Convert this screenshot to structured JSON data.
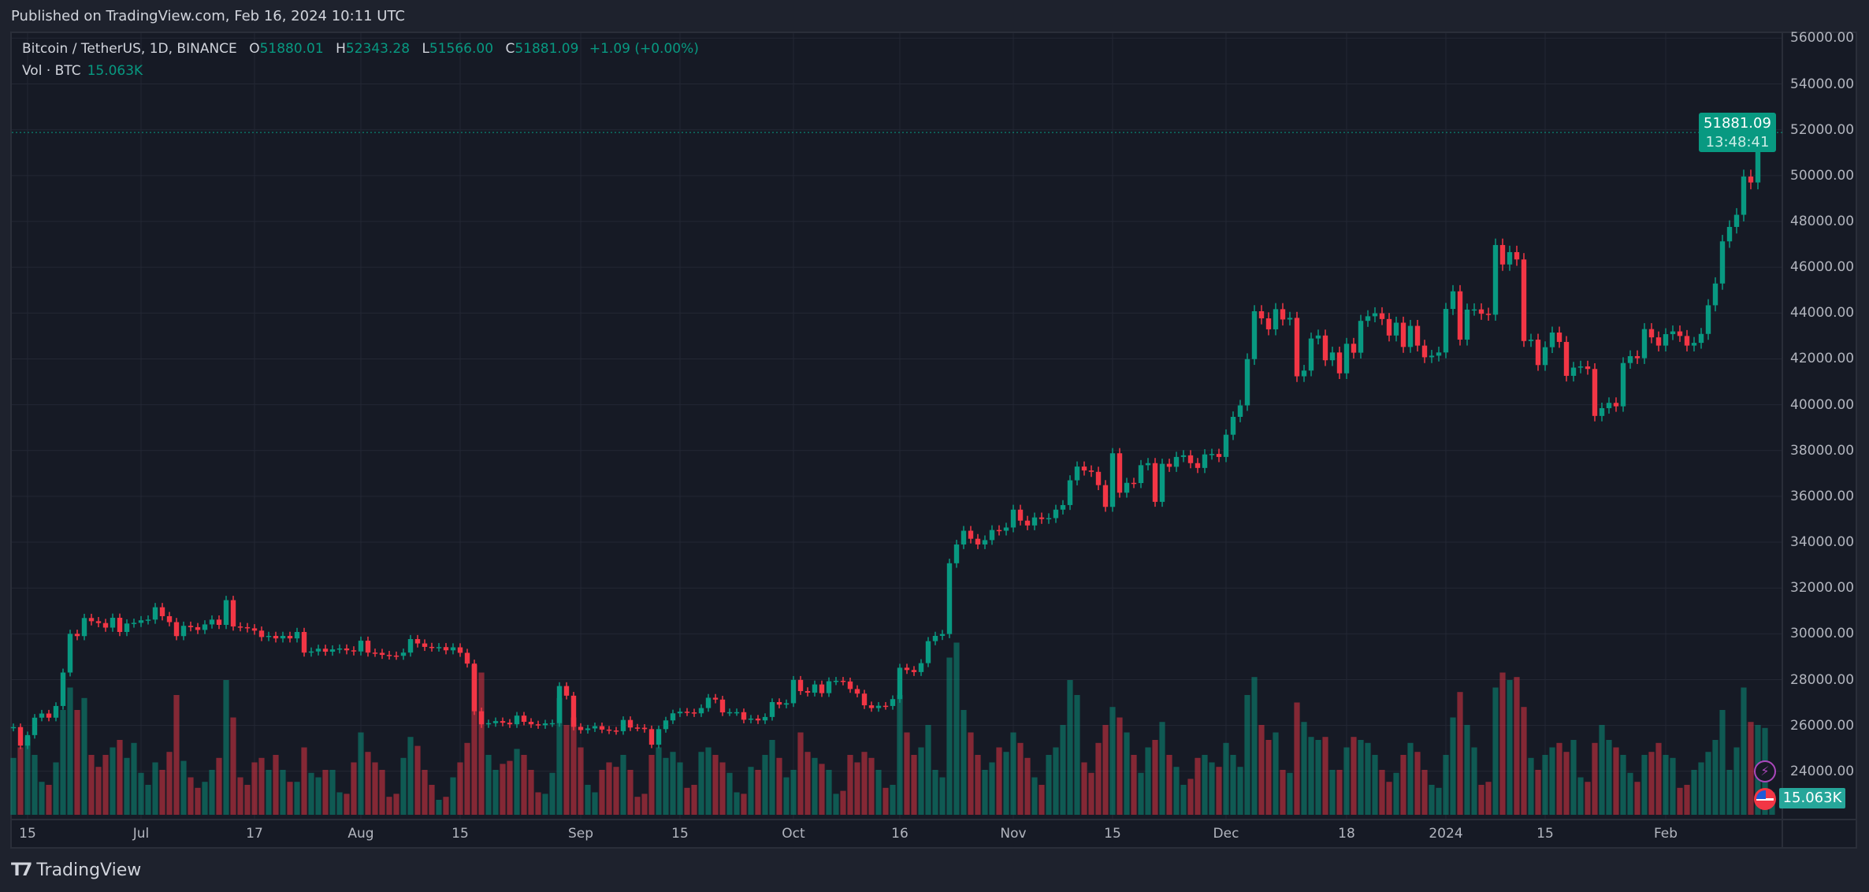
{
  "header": {
    "published": "Published on TradingView.com, Feb 16, 2024 10:11 UTC"
  },
  "legend": {
    "symbol": "Bitcoin / TetherUS, 1D, BINANCE",
    "o_label": "O",
    "o": "51880.01",
    "h_label": "H",
    "h": "52343.28",
    "l_label": "L",
    "l": "51566.00",
    "c_label": "C",
    "c": "51881.09",
    "change": "+1.09 (+0.00%)",
    "vol_label": "Vol · BTC",
    "vol": "15.063K"
  },
  "last_price": {
    "price": "51881.09",
    "countdown": "13:48:41",
    "vol": "15.063K"
  },
  "footer": {
    "brand": "TradingView"
  },
  "colors": {
    "up": "#089981",
    "down": "#f23645",
    "background": "#161a25",
    "grid": "#232734"
  },
  "icons": [
    "lightning-icon",
    "us-flag-icon",
    "tradingview-logo-icon"
  ],
  "chart_data": {
    "type": "candlestick",
    "interval": "1D",
    "x_start": "2023-06-13",
    "ylim": [
      23000,
      57000
    ],
    "grid": true,
    "y_ticks": [
      56000,
      54000,
      52000,
      50000,
      48000,
      46000,
      44000,
      42000,
      40000,
      38000,
      36000,
      34000,
      32000,
      30000,
      28000,
      26000,
      24000
    ],
    "y_tick_labels": [
      "56000.00",
      "54000.00",
      "52000.00",
      "50000.00",
      "48000.00",
      "46000.00",
      "44000.00",
      "42000.00",
      "40000.00",
      "38000.00",
      "36000.00",
      "34000.00",
      "32000.00",
      "30000.00",
      "28000.00",
      "26000.00",
      "24000.00"
    ],
    "x_ticks": [
      {
        "label": "15",
        "date": "2023-06-15"
      },
      {
        "label": "Jul",
        "date": "2023-07-01"
      },
      {
        "label": "17",
        "date": "2023-07-17"
      },
      {
        "label": "Aug",
        "date": "2023-08-01"
      },
      {
        "label": "15",
        "date": "2023-08-15"
      },
      {
        "label": "Sep",
        "date": "2023-09-01"
      },
      {
        "label": "15",
        "date": "2023-09-15"
      },
      {
        "label": "Oct",
        "date": "2023-10-01"
      },
      {
        "label": "16",
        "date": "2023-10-16"
      },
      {
        "label": "Nov",
        "date": "2023-11-01"
      },
      {
        "label": "15",
        "date": "2023-11-15"
      },
      {
        "label": "Dec",
        "date": "2023-12-01"
      },
      {
        "label": "18",
        "date": "2023-12-18"
      },
      {
        "label": "2024",
        "date": "2024-01-01"
      },
      {
        "label": "15",
        "date": "2024-01-15"
      },
      {
        "label": "Feb",
        "date": "2024-02-01"
      }
    ],
    "first_open": 25900,
    "close": [
      25930,
      25120,
      25580,
      26340,
      26520,
      26340,
      26850,
      28310,
      30000,
      29900,
      30690,
      30550,
      30470,
      30270,
      30700,
      30080,
      30450,
      30480,
      30590,
      30620,
      31160,
      30770,
      30510,
      29900,
      30350,
      30290,
      30170,
      30410,
      30620,
      30390,
      31470,
      30320,
      30290,
      30240,
      30140,
      29860,
      29910,
      29800,
      29910,
      29800,
      30080,
      29180,
      29230,
      29350,
      29220,
      29320,
      29360,
      29280,
      29230,
      29700,
      29180,
      29170,
      29080,
      29050,
      29040,
      29180,
      29770,
      29580,
      29430,
      29400,
      29420,
      29280,
      29410,
      29170,
      28700,
      26620,
      26050,
      26100,
      26190,
      26120,
      26050,
      26430,
      26160,
      26050,
      26010,
      26090,
      26100,
      27720,
      27300,
      25940,
      25800,
      25870,
      25970,
      25820,
      25780,
      25750,
      26240,
      25910,
      25900,
      25840,
      25160,
      25840,
      26220,
      26530,
      26600,
      26570,
      26530,
      26760,
      27210,
      27130,
      26570,
      26580,
      26580,
      26250,
      26300,
      26220,
      26370,
      27020,
      26910,
      26970,
      27990,
      27500,
      27430,
      27790,
      27410,
      27930,
      27950,
      27920,
      27590,
      27390,
      26880,
      26760,
      26860,
      26850,
      27150,
      28520,
      28420,
      28330,
      28720,
      29680,
      29910,
      29990,
      33080,
      33900,
      34500,
      34150,
      33900,
      34090,
      34530,
      34500,
      34640,
      35420,
      34940,
      34730,
      35080,
      35010,
      35050,
      35420,
      35620,
      36700,
      37300,
      37130,
      37070,
      36490,
      35540,
      37880,
      36160,
      36590,
      36580,
      37360,
      37450,
      35760,
      37420,
      37290,
      37720,
      37790,
      37450,
      37240,
      37830,
      37850,
      37720,
      38690,
      39470,
      39970,
      41990,
      44080,
      43770,
      43290,
      44170,
      43720,
      43790,
      41240,
      41490,
      42890,
      43020,
      41940,
      42280,
      41370,
      42660,
      42270,
      43660,
      43860,
      43990,
      43740,
      43020,
      43580,
      42520,
      43440,
      42580,
      42070,
      42140,
      42280,
      44180,
      44950,
      42840,
      44150,
      44160,
      43970,
      43930,
      46970,
      46120,
      46660,
      46340,
      42780,
      42840,
      41730,
      42510,
      43150,
      42740,
      41260,
      41620,
      41670,
      41560,
      39510,
      39850,
      40080,
      39930,
      41820,
      42120,
      42030,
      43300,
      42940,
      42580,
      43080,
      43200,
      43000,
      42580,
      42700,
      43090,
      44340,
      45290,
      47130,
      47760,
      48290,
      49960,
      49700,
      51800,
      51880.01,
      51881.09
    ],
    "volume_k": [
      38,
      45,
      52,
      40,
      22,
      20,
      35,
      70,
      85,
      70,
      78,
      40,
      32,
      40,
      45,
      50,
      38,
      48,
      28,
      20,
      35,
      30,
      42,
      80,
      36,
      25,
      18,
      22,
      30,
      38,
      90,
      65,
      25,
      20,
      35,
      38,
      30,
      40,
      30,
      22,
      22,
      45,
      28,
      25,
      30,
      30,
      15,
      14,
      35,
      55,
      42,
      35,
      30,
      12,
      14,
      38,
      52,
      46,
      30,
      20,
      10,
      12,
      25,
      35,
      48,
      100,
      95,
      40,
      30,
      34,
      36,
      44,
      40,
      30,
      15,
      14,
      28,
      78,
      60,
      65,
      45,
      20,
      15,
      30,
      35,
      32,
      40,
      30,
      12,
      14,
      40,
      45,
      38,
      42,
      35,
      18,
      20,
      42,
      45,
      40,
      35,
      28,
      15,
      14,
      32,
      30,
      40,
      50,
      38,
      25,
      30,
      55,
      42,
      38,
      34,
      30,
      14,
      16,
      40,
      35,
      42,
      38,
      30,
      18,
      20,
      80,
      55,
      40,
      45,
      60,
      30,
      25,
      105,
      115,
      70,
      55,
      40,
      30,
      35,
      45,
      42,
      55,
      48,
      38,
      25,
      20,
      40,
      45,
      60,
      90,
      80,
      35,
      28,
      48,
      60,
      72,
      65,
      55,
      40,
      28,
      45,
      50,
      62,
      40,
      32,
      20,
      24,
      38,
      40,
      35,
      32,
      48,
      40,
      32,
      80,
      92,
      60,
      50,
      55,
      30,
      28,
      75,
      62,
      52,
      50,
      52,
      30,
      30,
      45,
      52,
      50,
      48,
      40,
      30,
      22,
      28,
      40,
      48,
      42,
      30,
      20,
      18,
      40,
      65,
      82,
      60,
      45,
      20,
      22,
      85,
      95,
      90,
      92,
      72,
      38,
      30,
      40,
      45,
      48,
      42,
      50,
      25,
      22,
      48,
      60,
      50,
      45,
      40,
      28,
      22,
      40,
      42,
      48,
      40,
      38,
      18,
      20,
      30,
      35,
      42,
      50,
      70,
      30,
      45,
      85,
      62,
      60,
      58,
      15.063
    ]
  }
}
